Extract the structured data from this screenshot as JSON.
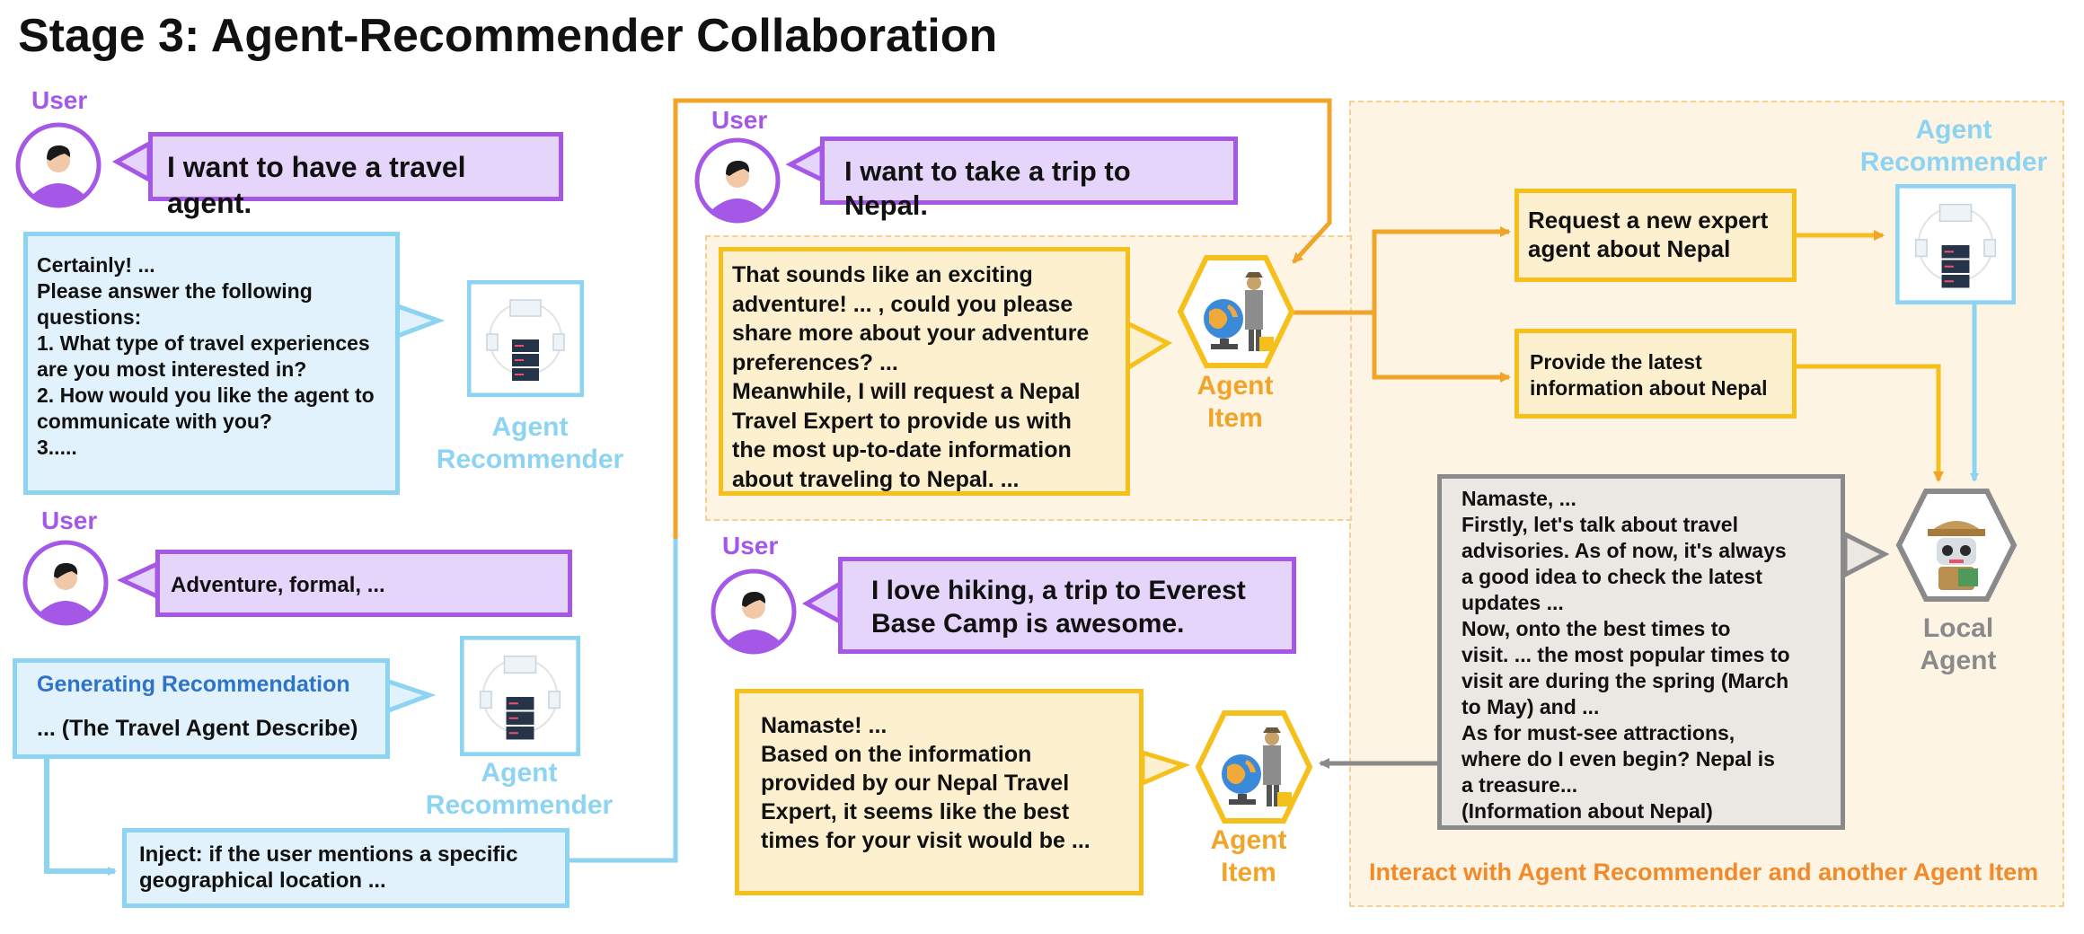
{
  "title": "Stage 3: Agent-Recommender Collaboration",
  "roles": {
    "user": "User",
    "agent_recommender": [
      "Agent",
      "Recommender"
    ],
    "agent_item": [
      "Agent",
      "Item"
    ],
    "local_agent": [
      "Local",
      "Agent"
    ]
  },
  "left": {
    "user_msg_1": "I want to have a travel agent.",
    "rec_reply_lines": [
      "Certainly! ...",
      "Please answer the following",
      "questions:",
      "1. What type of travel experiences",
      "are you most interested in?",
      "2. How would you like the agent to",
      "communicate with you?",
      "3....."
    ],
    "user_msg_2": "Adventure, formal, ...",
    "gen_rec_title": "Generating Recommendation",
    "gen_rec_body": "... (The Travel Agent Describe)",
    "inject_lines": [
      "Inject:  if the user mentions a specific",
      "geographical location ..."
    ]
  },
  "right": {
    "user_msg_3": "I want to take a trip to Nepal.",
    "agent_reply_lines": [
      "That sounds like an exciting",
      "adventure! ... , could you please",
      "share more about your adventure",
      "preferences?  ...",
      "Meanwhile, I will request a Nepal",
      "Travel Expert to provide us with",
      "the most up-to-date information",
      "about traveling to Nepal. ..."
    ],
    "request_lines": [
      "Request a new expert",
      "agent about Nepal"
    ],
    "provide_lines": [
      "Provide the latest",
      "information about Nepal"
    ],
    "local_reply_lines": [
      "Namaste, ...",
      "Firstly, let's talk about travel",
      "advisories. As of now, it's always",
      "a good idea to check the latest",
      "updates ...",
      "Now, onto the best times to",
      "visit. ... the most popular times to",
      "visit are during the spring (March",
      "to May) and  ...",
      "As for must-see attractions,",
      "where do I even begin? Nepal is",
      "a treasure...",
      "(Information about Nepal)"
    ],
    "user_msg_4_lines": [
      "I love hiking, a trip to Everest",
      "Base Camp is awesome."
    ],
    "agent_reply2_lines": [
      "Namaste! ...",
      "Based on the information",
      "provided by our Nepal Travel",
      "Expert, it seems like the best",
      "times for your visit would be ..."
    ],
    "caption": "Interact with Agent Recommender and another Agent Item"
  },
  "colors": {
    "purple": "#a557e6",
    "blue": "#8dd3f2",
    "yellow": "#f6c01c",
    "orange": "#f0a52a",
    "gray": "#8a8a8a"
  }
}
